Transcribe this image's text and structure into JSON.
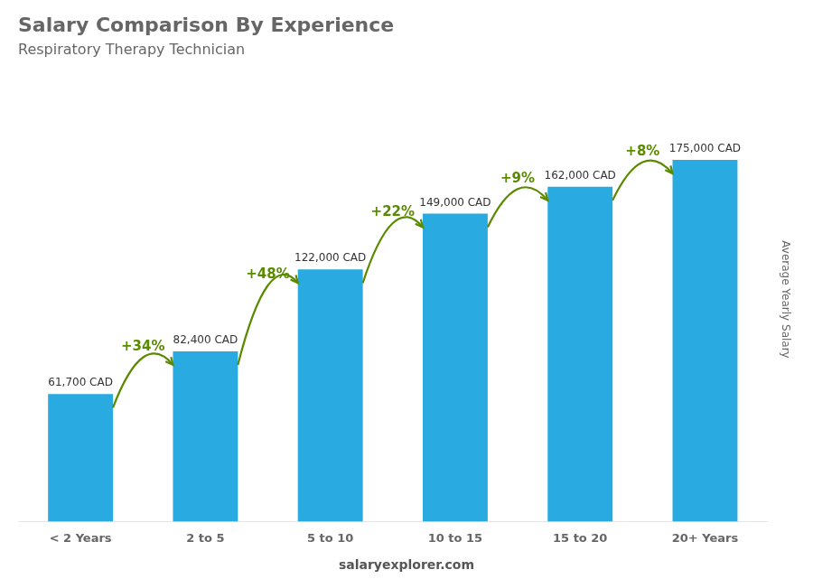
{
  "chart_data": {
    "type": "bar",
    "title": "Salary Comparison By Experience",
    "subtitle": "Respiratory Therapy Technician",
    "categories": [
      "< 2 Years",
      "2 to 5",
      "5 to 10",
      "10 to 15",
      "15 to 20",
      "20+ Years"
    ],
    "values": [
      61700,
      82400,
      122000,
      149000,
      162000,
      175000
    ],
    "value_labels": [
      "61,700 CAD",
      "82,400 CAD",
      "122,000 CAD",
      "149,000 CAD",
      "162,000 CAD",
      "175,000 CAD"
    ],
    "data_labels": true,
    "annotations": [
      "+34%",
      "+48%",
      "+22%",
      "+9%",
      "+8%"
    ],
    "ylabel": "Average Yearly Salary",
    "footer": "salaryexplorer.com",
    "color": "#29ABE2",
    "ylim": [
      0,
      215000
    ],
    "tick_labels": "x",
    "grid": false
  }
}
